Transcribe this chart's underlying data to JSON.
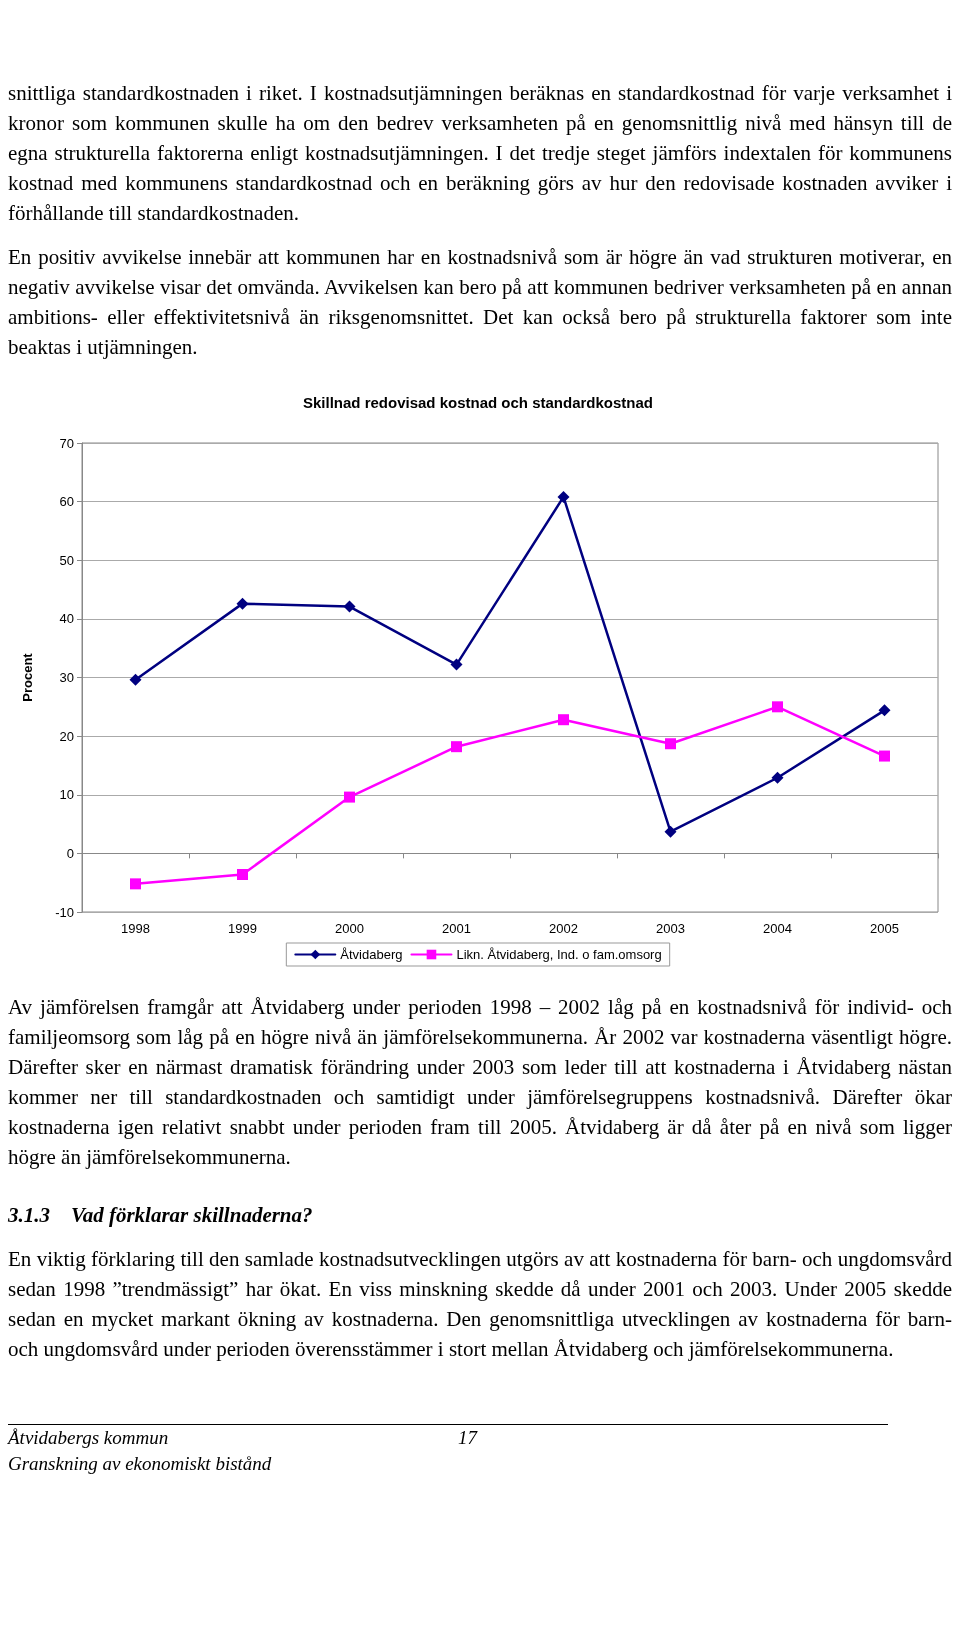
{
  "chart_data": {
    "type": "line",
    "title": "Skillnad redovisad kostnad och standardkostnad",
    "ylabel": "Procent",
    "categories": [
      "1998",
      "1999",
      "2000",
      "2001",
      "2002",
      "2003",
      "2004",
      "2005"
    ],
    "series": [
      {
        "name": "Åtvidaberg",
        "color": "#000080",
        "marker": "diamond",
        "values": [
          29.6,
          42.6,
          42.1,
          32.2,
          60.8,
          3.7,
          12.9,
          24.4
        ]
      },
      {
        "name": "Likn. Åtvidaberg, Ind. o fam.omsorg",
        "color": "#ff00ff",
        "marker": "square",
        "values": [
          -5.2,
          -3.6,
          9.6,
          18.2,
          22.8,
          18.7,
          25.0,
          16.6
        ]
      }
    ],
    "ylim": [
      -10,
      70
    ],
    "yticks": [
      -10,
      0,
      10,
      20,
      30,
      40,
      50,
      60,
      70
    ],
    "grid": "y",
    "legend": "bottom",
    "line_style": "solid",
    "annotations": [
      "snittliga standardkostnaden i riket. I kostnadsutjämningen beräknas en standardkostnad för varje verksamhet i kronor som kommunen skulle ha om den bedrev verksamheten på en genomsnittlig nivå med hänsyn till de egna strukturella faktorerna enligt kostnadsutjämningen. I det tredje steget jämförs indextalen för kommunens kostnad med kommunens standardkostnad och en beräkning görs av hur den redovisade kostnaden avviker i förhållande till standardkostnaden.",
      "En positiv avvikelse innebär att kommunen har en kostnadsnivå som är högre än vad strukturen motiverar, en negativ avvikelse visar det omvända. Avvikelsen kan bero på att kommunen bedriver verksamheten på en annan ambitions- eller effektivitetsnivå än riksgenomsnittet. Det kan också bero på strukturella faktorer som inte beaktas i utjämningen.",
      "Av jämförelsen framgår att Åtvidaberg under perioden 1998 – 2002 låg på en kostnadsnivå för individ- och familjeomsorg som låg på en högre nivå än jämförelsekommunerna. År 2002 var kostnaderna väsentligt högre. Därefter sker en närmast dramatisk förändring under 2003 som leder till att kostnaderna i Åtvidaberg nästan kommer ner till standardkostnaden och samtidigt under jämförelsegruppens kostnadsnivå. Därefter ökar kostnaderna igen relativt snabbt under perioden fram till 2005. Åtvidaberg är då åter på en nivå som ligger högre än jämförelsekommunerna.",
      "3.1.3    Vad förklarar skillnaderna?",
      "En viktig förklaring till den samlade kostnadsutvecklingen utgörs av att kostnaderna för barn- och ungdomsvård sedan 1998 ”trendmässigt” har ökat. En viss minskning skedde då under 2001 och 2003. Under 2005 skedde sedan en mycket markant ökning av kostnaderna. Den genomsnittliga utvecklingen av kostnaderna för barn- och ungdomsvård under perioden överensstämmer i stort mellan Åtvidaberg och jämförelsekommunerna.",
      "Åtvidabergs kommun",
      "17",
      "Granskning av ekonomiskt bistånd"
    ]
  }
}
